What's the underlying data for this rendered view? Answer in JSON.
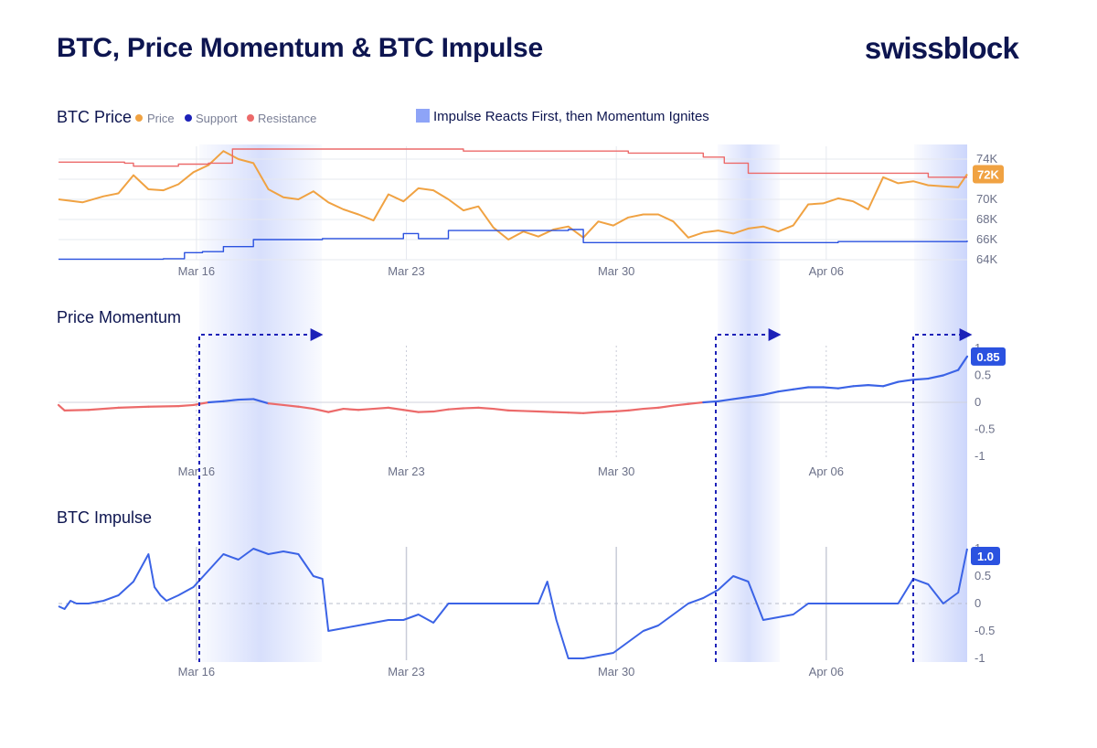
{
  "header": {
    "title": "BTC, Price Momentum & BTC Impulse",
    "brand": "swissblock"
  },
  "colors": {
    "price": "#f0a242",
    "support": "#2b52e0",
    "resistance": "#ec6a6a",
    "momentum_positive": "#3b63e6",
    "momentum_negative": "#ec6a6a",
    "impulse": "#3b63e6",
    "highlight": "#8ea4f7",
    "navy": "#0d1550"
  },
  "legend": {
    "panel_title": "BTC Price",
    "price": "Price",
    "support": "Support",
    "resistance": "Resistance",
    "highlight_note": "Impulse Reacts First, then Momentum Ignites"
  },
  "chart_data": [
    {
      "type": "line",
      "title": "BTC Price",
      "x_ticks": [
        "Mar 16",
        "Mar 23",
        "Mar 30",
        "Apr 06"
      ],
      "y_ticks": [
        "74K",
        "72K",
        "70K",
        "68K",
        "66K",
        "64K"
      ],
      "ylim": [
        64000,
        75000
      ],
      "current_value_label": "72K",
      "series": [
        {
          "name": "Price",
          "x": [
            0,
            0.8,
            1.5,
            2,
            2.5,
            3,
            3.5,
            4,
            4.5,
            5,
            5.5,
            6,
            6.5,
            7,
            7.5,
            8,
            8.5,
            9,
            9.5,
            10,
            10.5,
            11,
            11.5,
            12,
            12.5,
            13,
            13.5,
            14,
            14.5,
            15,
            15.5,
            16,
            16.5,
            17,
            17.5,
            18,
            18.5,
            19,
            19.5,
            20,
            20.5,
            21,
            21.5,
            22,
            22.5,
            23,
            23.5,
            24,
            24.5,
            25,
            25.5,
            26,
            26.5,
            27,
            27.5,
            28,
            28.5,
            29,
            29.5,
            30,
            30.3
          ],
          "values": [
            70000,
            69700,
            70300,
            70600,
            72400,
            71000,
            70900,
            71500,
            72700,
            73400,
            74800,
            74000,
            73600,
            71000,
            70200,
            70000,
            70800,
            69700,
            69000,
            68500,
            67900,
            70500,
            69800,
            71100,
            70900,
            70000,
            68900,
            69300,
            67200,
            66000,
            66800,
            66300,
            67000,
            67300,
            66200,
            67800,
            67400,
            68200,
            68500,
            68500,
            67800,
            66200,
            66700,
            66900,
            66600,
            67100,
            67300,
            66800,
            67400,
            69500,
            69600,
            70100,
            69800,
            69000,
            72200,
            71600,
            71800,
            71400,
            71300,
            71200,
            72500
          ]
        },
        {
          "name": "Support",
          "x": [
            0,
            3.5,
            4.2,
            4.8,
            5.5,
            6.5,
            8.8,
            11.5,
            12.0,
            13.0,
            17.0,
            17.5,
            26.0,
            30.3
          ],
          "values": [
            64050,
            64100,
            64700,
            64800,
            65300,
            66000,
            66100,
            66600,
            66100,
            66900,
            67000,
            65700,
            65800,
            65900
          ]
        },
        {
          "name": "Resistance",
          "x": [
            0,
            2.2,
            2.5,
            3.2,
            4.0,
            5.0,
            5.8,
            6.6,
            11.5,
            13.5,
            19.0,
            21.5,
            22.2,
            23.0,
            28.5,
            29.0,
            30.3
          ],
          "values": [
            73700,
            73600,
            73300,
            73300,
            73500,
            73600,
            75000,
            75000,
            75000,
            74800,
            74600,
            74200,
            73600,
            72600,
            72600,
            72200,
            72200
          ]
        }
      ],
      "grid": true
    },
    {
      "type": "line",
      "title": "Price Momentum",
      "x_ticks": [
        "Mar 16",
        "Mar 23",
        "Mar 30",
        "Apr 06"
      ],
      "y_ticks": [
        "1",
        "0.5",
        "0",
        "-0.5",
        "-1"
      ],
      "ylim": [
        -1,
        1
      ],
      "current_value_label": "0.85",
      "series": [
        {
          "name": "Price Momentum",
          "x": [
            0,
            0.2,
            1,
            2,
            3,
            4,
            4.5,
            5,
            5.5,
            6,
            6.5,
            7,
            7.5,
            8,
            8.5,
            9,
            9.5,
            10,
            10.5,
            11,
            11.5,
            12,
            12.5,
            13,
            13.5,
            14,
            14.5,
            15,
            15.5,
            16,
            16.5,
            17,
            17.5,
            18,
            18.5,
            19,
            19.5,
            20,
            20.5,
            21,
            21.5,
            22,
            22.5,
            23,
            23.5,
            24,
            24.5,
            25,
            25.5,
            26,
            26.5,
            27,
            27.5,
            28,
            28.5,
            29,
            29.5,
            30,
            30.3
          ],
          "values": [
            -0.05,
            -0.15,
            -0.14,
            -0.1,
            -0.08,
            -0.07,
            -0.05,
            0.0,
            0.02,
            0.05,
            0.06,
            -0.02,
            -0.05,
            -0.08,
            -0.12,
            -0.18,
            -0.12,
            -0.14,
            -0.12,
            -0.1,
            -0.14,
            -0.18,
            -0.17,
            -0.13,
            -0.11,
            -0.1,
            -0.12,
            -0.15,
            -0.16,
            -0.17,
            -0.18,
            -0.19,
            -0.2,
            -0.18,
            -0.17,
            -0.15,
            -0.12,
            -0.1,
            -0.06,
            -0.03,
            0.0,
            0.02,
            0.06,
            0.1,
            0.14,
            0.2,
            0.24,
            0.28,
            0.28,
            0.26,
            0.3,
            0.32,
            0.3,
            0.38,
            0.42,
            0.44,
            0.5,
            0.6,
            0.85
          ]
        }
      ],
      "grid": true
    },
    {
      "type": "line",
      "title": "BTC Impulse",
      "x_ticks": [
        "Mar 16",
        "Mar 23",
        "Mar 30",
        "Apr 06"
      ],
      "y_ticks": [
        "1",
        "0.5",
        "0",
        "-0.5",
        "-1"
      ],
      "ylim": [
        -1,
        1
      ],
      "current_value_label": "1.0",
      "series": [
        {
          "name": "BTC Impulse",
          "x": [
            0,
            0.2,
            0.4,
            0.6,
            1.0,
            1.5,
            2.0,
            2.5,
            3.0,
            3.2,
            3.4,
            3.6,
            4.0,
            4.5,
            5.0,
            5.5,
            6.0,
            6.5,
            7.0,
            7.5,
            8.0,
            8.5,
            8.8,
            9.0,
            9.5,
            10.0,
            10.5,
            11.0,
            11.5,
            12.0,
            12.5,
            13.0,
            14.0,
            15.0,
            16.0,
            16.3,
            16.6,
            17.0,
            17.5,
            18.0,
            18.5,
            19.0,
            19.5,
            20.0,
            20.5,
            21.0,
            21.5,
            22.0,
            22.5,
            23.0,
            23.5,
            24.0,
            24.5,
            25.0,
            25.5,
            26.0,
            27.0,
            28.0,
            28.5,
            29.0,
            29.5,
            30.0,
            30.3
          ],
          "values": [
            -0.05,
            -0.1,
            0.05,
            0.0,
            0.0,
            0.05,
            0.15,
            0.4,
            0.9,
            0.3,
            0.15,
            0.05,
            0.15,
            0.3,
            0.6,
            0.9,
            0.8,
            1.0,
            0.9,
            0.95,
            0.9,
            0.5,
            0.45,
            -0.5,
            -0.45,
            -0.4,
            -0.35,
            -0.3,
            -0.3,
            -0.2,
            -0.35,
            0.0,
            0.0,
            0.0,
            0.0,
            0.4,
            -0.3,
            -1.0,
            -1.0,
            -0.95,
            -0.9,
            -0.7,
            -0.5,
            -0.4,
            -0.2,
            0.0,
            0.1,
            0.25,
            0.5,
            0.4,
            -0.3,
            -0.25,
            -0.2,
            0.0,
            0.0,
            0.0,
            0.0,
            0.0,
            0.45,
            0.35,
            0.0,
            0.2,
            1.0
          ]
        }
      ],
      "grid": true
    }
  ]
}
